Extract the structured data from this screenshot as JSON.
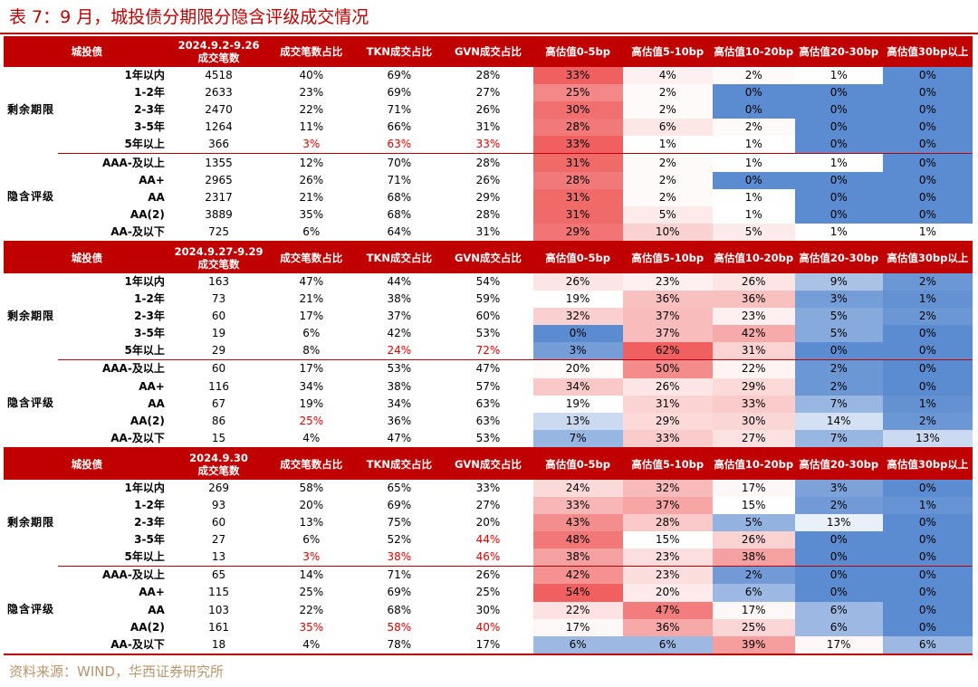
{
  "title": "表 7：9 月，城投债分期限分隐含评级成交情况",
  "source": "资料来源：WIND，华西证券研究所",
  "header": {
    "category": "城投债",
    "count_suffix": "成交笔数",
    "columns": [
      "成交笔数占比",
      "TKN成交占比",
      "GVN成交占比",
      "高估值0-5bp",
      "高估值5-10bp",
      "高估值10-20bp",
      "高估值20-30bp",
      "高估值30bp以上"
    ]
  },
  "blocks": [
    {
      "period": "2024.9.2-9.26",
      "groups": [
        {
          "name": "剩余期限",
          "rows": [
            {
              "label": "1年以内",
              "count": "4518",
              "share": "40%",
              "tkn": "69%",
              "gvn": "28%",
              "b05": "33%",
              "b510": "4%",
              "b1020": "2%",
              "b2030": "1%",
              "b30": "0%"
            },
            {
              "label": "1-2年",
              "count": "2633",
              "share": "23%",
              "tkn": "69%",
              "gvn": "27%",
              "b05": "25%",
              "b510": "2%",
              "b1020": "0%",
              "b2030": "0%",
              "b30": "0%"
            },
            {
              "label": "2-3年",
              "count": "2470",
              "share": "22%",
              "tkn": "71%",
              "gvn": "26%",
              "b05": "30%",
              "b510": "2%",
              "b1020": "0%",
              "b2030": "0%",
              "b30": "0%"
            },
            {
              "label": "3-5年",
              "count": "1264",
              "share": "11%",
              "tkn": "66%",
              "gvn": "31%",
              "b05": "28%",
              "b510": "6%",
              "b1020": "2%",
              "b2030": "0%",
              "b30": "0%"
            },
            {
              "label": "5年以上",
              "count": "366",
              "share": "3%",
              "tkn": "63%",
              "gvn": "33%",
              "b05": "33%",
              "b510": "1%",
              "b1020": "1%",
              "b2030": "0%",
              "b30": "0%",
              "red": [
                "share",
                "tkn",
                "gvn"
              ]
            }
          ]
        },
        {
          "name": "隐含评级",
          "rows": [
            {
              "label": "AAA-及以上",
              "count": "1355",
              "share": "12%",
              "tkn": "70%",
              "gvn": "28%",
              "b05": "31%",
              "b510": "2%",
              "b1020": "1%",
              "b2030": "1%",
              "b30": "0%"
            },
            {
              "label": "AA+",
              "count": "2965",
              "share": "26%",
              "tkn": "71%",
              "gvn": "26%",
              "b05": "28%",
              "b510": "2%",
              "b1020": "0%",
              "b2030": "0%",
              "b30": "0%"
            },
            {
              "label": "AA",
              "count": "2317",
              "share": "21%",
              "tkn": "68%",
              "gvn": "29%",
              "b05": "31%",
              "b510": "2%",
              "b1020": "1%",
              "b2030": "0%",
              "b30": "0%"
            },
            {
              "label": "AA(2)",
              "count": "3889",
              "share": "35%",
              "tkn": "68%",
              "gvn": "28%",
              "b05": "31%",
              "b510": "5%",
              "b1020": "1%",
              "b2030": "0%",
              "b30": "0%"
            },
            {
              "label": "AA-及以下",
              "count": "725",
              "share": "6%",
              "tkn": "64%",
              "gvn": "31%",
              "b05": "29%",
              "b510": "10%",
              "b1020": "5%",
              "b2030": "1%",
              "b30": "1%"
            }
          ]
        }
      ]
    },
    {
      "period": "2024.9.27-9.29",
      "groups": [
        {
          "name": "剩余期限",
          "rows": [
            {
              "label": "1年以内",
              "count": "163",
              "share": "47%",
              "tkn": "44%",
              "gvn": "54%",
              "b05": "26%",
              "b510": "23%",
              "b1020": "26%",
              "b2030": "9%",
              "b30": "2%"
            },
            {
              "label": "1-2年",
              "count": "73",
              "share": "21%",
              "tkn": "38%",
              "gvn": "59%",
              "b05": "19%",
              "b510": "36%",
              "b1020": "36%",
              "b2030": "3%",
              "b30": "1%"
            },
            {
              "label": "2-3年",
              "count": "60",
              "share": "17%",
              "tkn": "37%",
              "gvn": "60%",
              "b05": "32%",
              "b510": "37%",
              "b1020": "23%",
              "b2030": "5%",
              "b30": "2%"
            },
            {
              "label": "3-5年",
              "count": "19",
              "share": "6%",
              "tkn": "42%",
              "gvn": "53%",
              "b05": "0%",
              "b510": "37%",
              "b1020": "42%",
              "b2030": "5%",
              "b30": "0%"
            },
            {
              "label": "5年以上",
              "count": "29",
              "share": "8%",
              "tkn": "24%",
              "gvn": "72%",
              "b05": "3%",
              "b510": "62%",
              "b1020": "31%",
              "b2030": "0%",
              "b30": "0%",
              "red": [
                "tkn",
                "gvn"
              ]
            }
          ]
        },
        {
          "name": "隐含评级",
          "rows": [
            {
              "label": "AAA-及以上",
              "count": "60",
              "share": "17%",
              "tkn": "53%",
              "gvn": "47%",
              "b05": "20%",
              "b510": "50%",
              "b1020": "22%",
              "b2030": "2%",
              "b30": "0%"
            },
            {
              "label": "AA+",
              "count": "116",
              "share": "34%",
              "tkn": "38%",
              "gvn": "57%",
              "b05": "34%",
              "b510": "26%",
              "b1020": "29%",
              "b2030": "2%",
              "b30": "0%"
            },
            {
              "label": "AA",
              "count": "67",
              "share": "19%",
              "tkn": "34%",
              "gvn": "63%",
              "b05": "19%",
              "b510": "31%",
              "b1020": "33%",
              "b2030": "7%",
              "b30": "1%"
            },
            {
              "label": "AA(2)",
              "count": "86",
              "share": "25%",
              "tkn": "36%",
              "gvn": "63%",
              "b05": "13%",
              "b510": "29%",
              "b1020": "30%",
              "b2030": "14%",
              "b30": "2%",
              "red": [
                "share"
              ]
            },
            {
              "label": "AA-及以下",
              "count": "15",
              "share": "4%",
              "tkn": "47%",
              "gvn": "53%",
              "b05": "7%",
              "b510": "33%",
              "b1020": "27%",
              "b2030": "7%",
              "b30": "13%"
            }
          ]
        }
      ]
    },
    {
      "period": "2024.9.30",
      "groups": [
        {
          "name": "剩余期限",
          "rows": [
            {
              "label": "1年以内",
              "count": "269",
              "share": "58%",
              "tkn": "65%",
              "gvn": "33%",
              "b05": "24%",
              "b510": "32%",
              "b1020": "17%",
              "b2030": "3%",
              "b30": "0%"
            },
            {
              "label": "1-2年",
              "count": "93",
              "share": "20%",
              "tkn": "69%",
              "gvn": "27%",
              "b05": "33%",
              "b510": "37%",
              "b1020": "15%",
              "b2030": "2%",
              "b30": "1%"
            },
            {
              "label": "2-3年",
              "count": "60",
              "share": "13%",
              "tkn": "75%",
              "gvn": "20%",
              "b05": "43%",
              "b510": "28%",
              "b1020": "5%",
              "b2030": "13%",
              "b30": "0%"
            },
            {
              "label": "3-5年",
              "count": "27",
              "share": "6%",
              "tkn": "52%",
              "gvn": "44%",
              "b05": "48%",
              "b510": "15%",
              "b1020": "26%",
              "b2030": "0%",
              "b30": "0%",
              "red": [
                "gvn"
              ]
            },
            {
              "label": "5年以上",
              "count": "13",
              "share": "3%",
              "tkn": "38%",
              "gvn": "46%",
              "b05": "38%",
              "b510": "23%",
              "b1020": "38%",
              "b2030": "0%",
              "b30": "0%",
              "red": [
                "share",
                "tkn",
                "gvn"
              ]
            }
          ]
        },
        {
          "name": "隐含评级",
          "rows": [
            {
              "label": "AAA-及以上",
              "count": "65",
              "share": "14%",
              "tkn": "71%",
              "gvn": "26%",
              "b05": "42%",
              "b510": "23%",
              "b1020": "2%",
              "b2030": "0%",
              "b30": "0%"
            },
            {
              "label": "AA+",
              "count": "115",
              "share": "25%",
              "tkn": "69%",
              "gvn": "25%",
              "b05": "54%",
              "b510": "20%",
              "b1020": "6%",
              "b2030": "0%",
              "b30": "0%"
            },
            {
              "label": "AA",
              "count": "103",
              "share": "22%",
              "tkn": "68%",
              "gvn": "30%",
              "b05": "22%",
              "b510": "47%",
              "b1020": "17%",
              "b2030": "6%",
              "b30": "0%"
            },
            {
              "label": "AA(2)",
              "count": "161",
              "share": "35%",
              "tkn": "58%",
              "gvn": "40%",
              "b05": "17%",
              "b510": "36%",
              "b1020": "25%",
              "b2030": "6%",
              "b30": "0%",
              "red": [
                "share",
                "tkn",
                "gvn"
              ]
            },
            {
              "label": "AA-及以下",
              "count": "18",
              "share": "4%",
              "tkn": "78%",
              "gvn": "17%",
              "b05": "6%",
              "b510": "6%",
              "b1020": "39%",
              "b2030": "17%",
              "b30": "6%"
            }
          ]
        }
      ]
    }
  ],
  "heat_colors": {
    "negative": "#5b8bd0",
    "neutral": "#ffffff",
    "positive": "#f06060"
  }
}
